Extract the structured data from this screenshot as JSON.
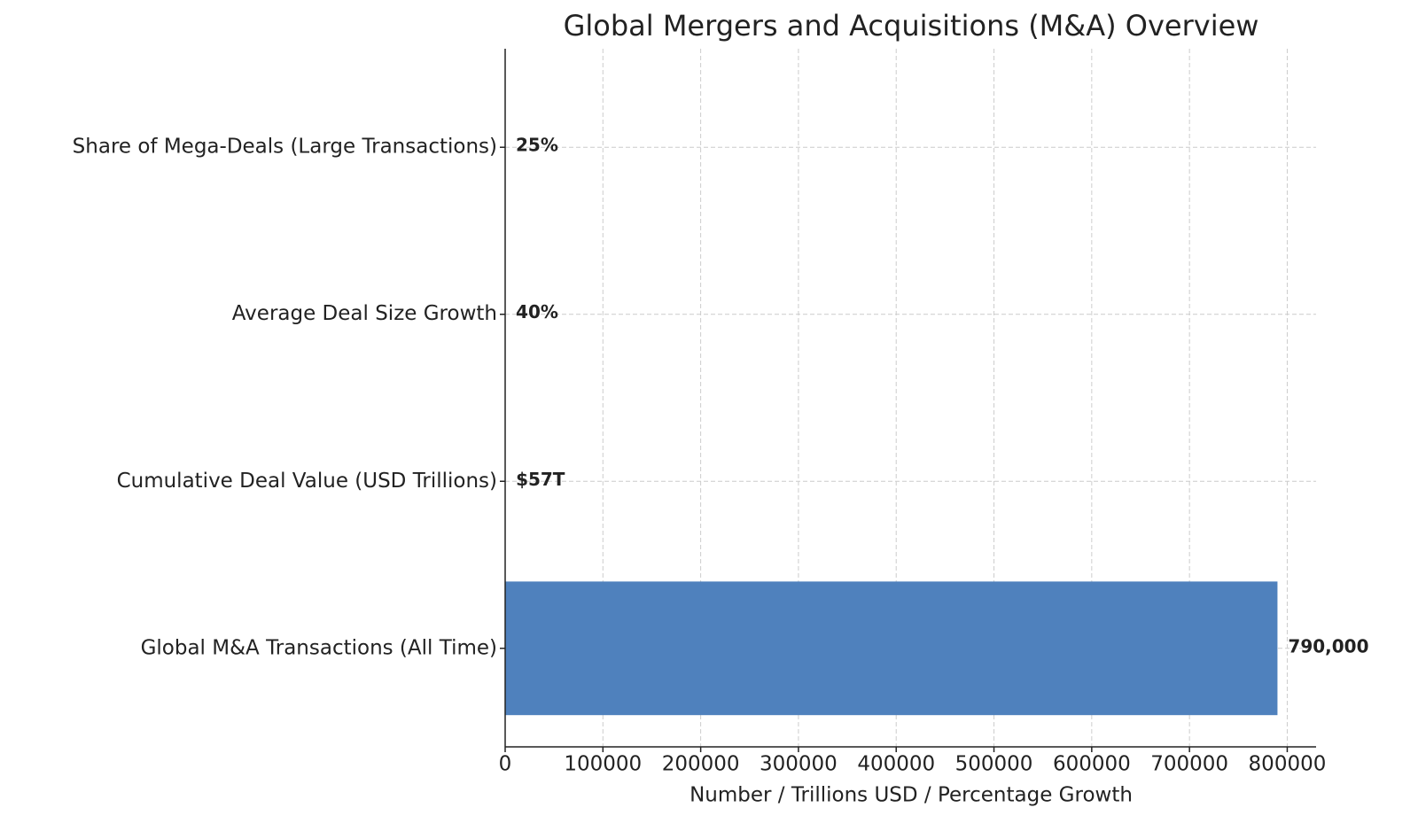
{
  "chart_data": {
    "type": "barh",
    "title": "Global Mergers and Acquisitions (M&A) Overview",
    "xlabel": "Number / Trillions USD / Percentage Growth",
    "categories": [
      "Global M&A Transactions (All Time)",
      "Cumulative Deal Value (USD Trillions)",
      "Average Deal Size Growth",
      "Share of Mega-Deals (Large Transactions)"
    ],
    "values": [
      790000,
      57,
      40,
      25
    ],
    "value_labels": [
      "790,000",
      "$57T",
      "40%",
      "25%"
    ],
    "color": "#4f81bd",
    "xlim": [
      0,
      829500
    ],
    "xticks": [
      0,
      100000,
      200000,
      300000,
      400000,
      500000,
      600000,
      700000,
      800000
    ],
    "grid": true
  }
}
